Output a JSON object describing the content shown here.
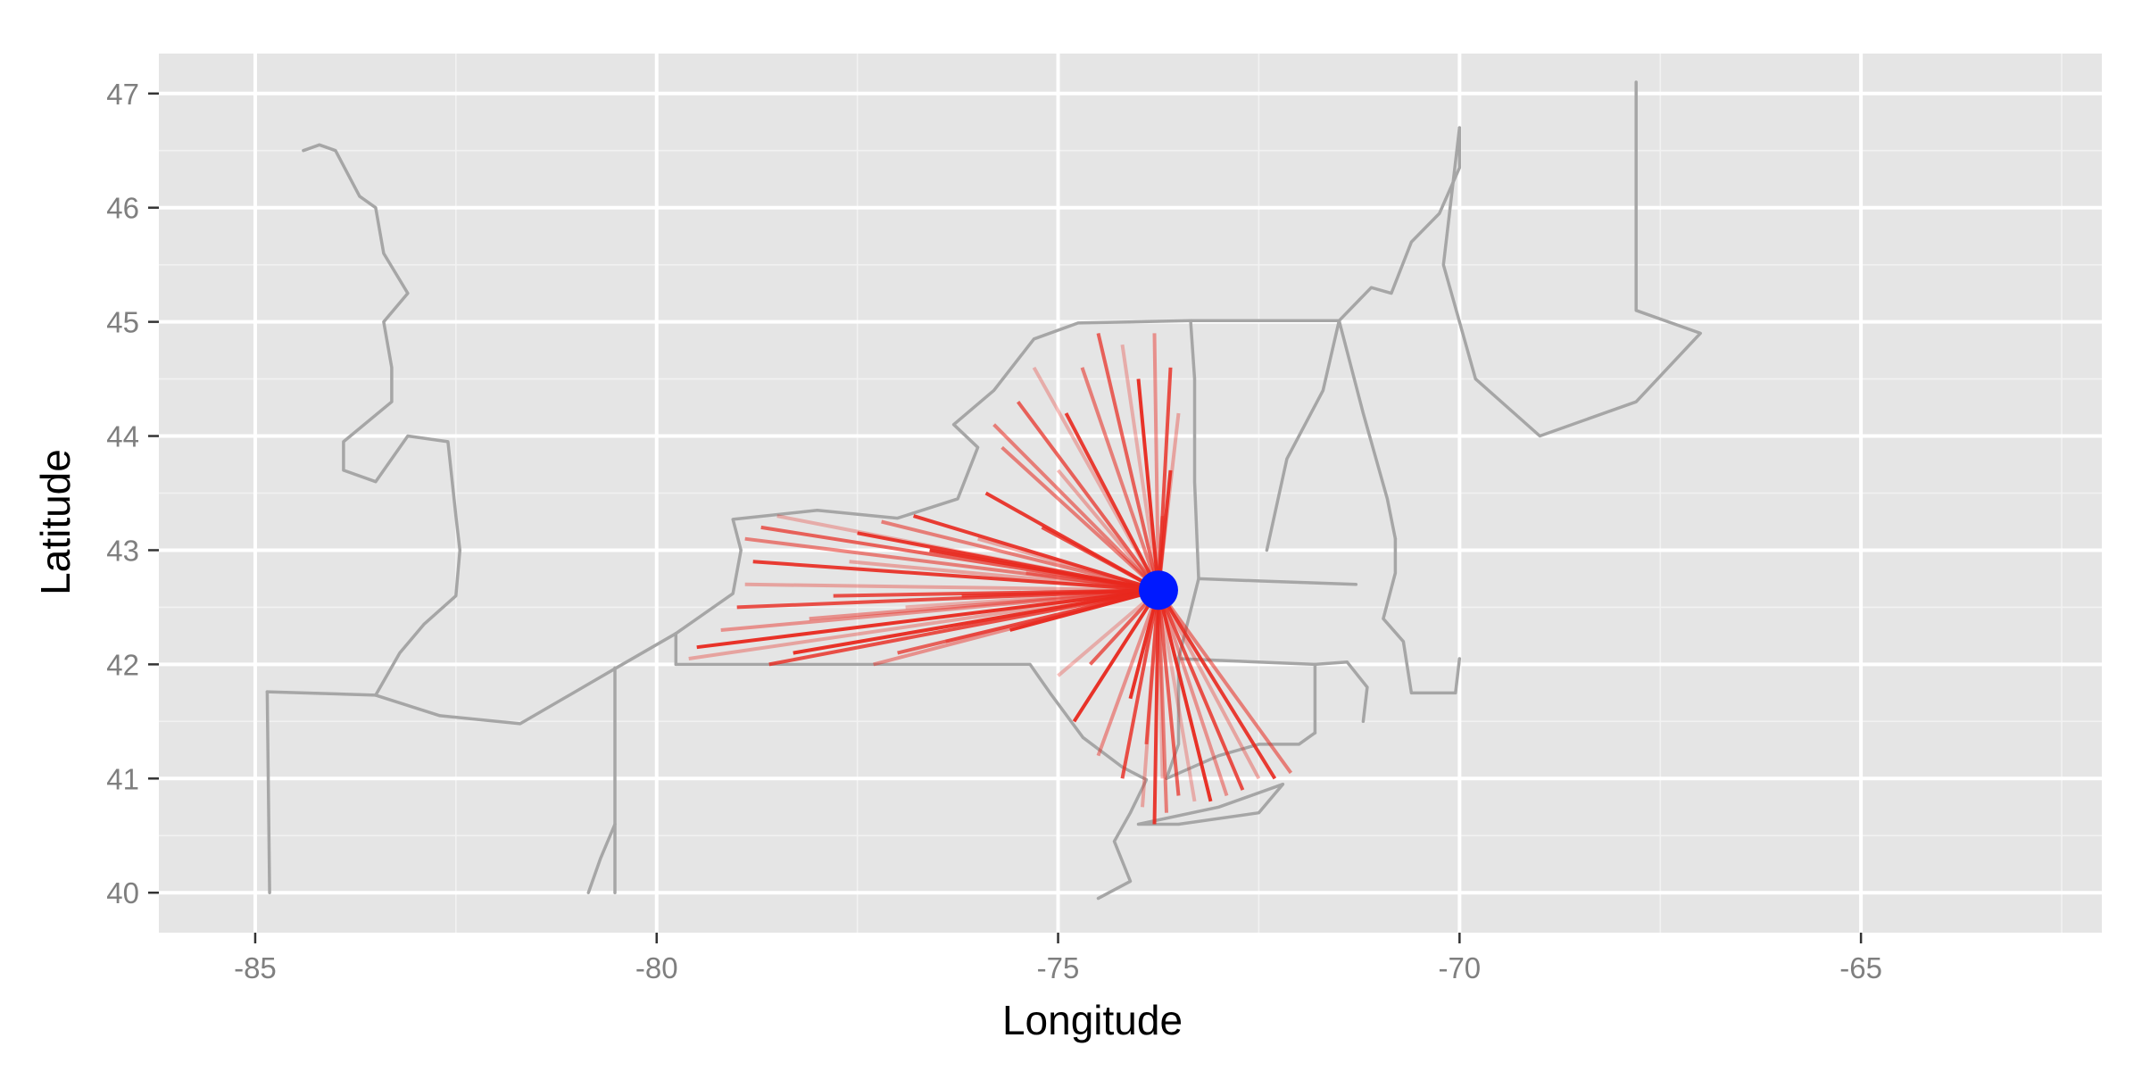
{
  "chart_data": {
    "type": "map",
    "xlabel": "Longitude",
    "ylabel": "Latitude",
    "xlim": [
      -86.2,
      -62.0
    ],
    "ylim": [
      39.65,
      47.35
    ],
    "x_ticks": [
      -85,
      -80,
      -75,
      -70,
      -65
    ],
    "x_tick_labels": [
      "-85",
      "-80",
      "-75",
      "-70",
      "-65"
    ],
    "y_ticks": [
      40,
      41,
      42,
      43,
      44,
      45,
      46,
      47
    ],
    "y_tick_labels": [
      "40",
      "41",
      "42",
      "43",
      "44",
      "45",
      "46",
      "47"
    ],
    "grid": true,
    "hub": {
      "lon": -73.75,
      "lat": 42.65,
      "color": "#0019ff"
    },
    "line_color": "#e8281e",
    "border_color": "#a6a6a6",
    "panel_background": "#e5e5e5",
    "borders": [
      [
        [
          -84.4,
          46.5
        ],
        [
          -84.2,
          46.55
        ],
        [
          -84.0,
          46.5
        ],
        [
          -83.7,
          46.1
        ],
        [
          -83.5,
          46.0
        ],
        [
          -83.4,
          45.6
        ],
        [
          -83.1,
          45.25
        ],
        [
          -83.4,
          45.0
        ],
        [
          -83.3,
          44.6
        ],
        [
          -83.3,
          44.3
        ],
        [
          -83.9,
          43.95
        ],
        [
          -83.9,
          43.7
        ],
        [
          -83.5,
          43.6
        ],
        [
          -83.1,
          44.0
        ],
        [
          -82.6,
          43.95
        ],
        [
          -82.5,
          43.3
        ],
        [
          -82.45,
          43.0
        ],
        [
          -82.5,
          42.6
        ],
        [
          -82.9,
          42.35
        ],
        [
          -83.2,
          42.1
        ],
        [
          -83.5,
          41.73
        ]
      ],
      [
        [
          -84.85,
          41.76
        ],
        [
          -83.5,
          41.73
        ],
        [
          -82.7,
          41.55
        ],
        [
          -81.7,
          41.48
        ],
        [
          -80.5,
          41.97
        ],
        [
          -79.76,
          42.27
        ],
        [
          -79.05,
          42.62
        ],
        [
          -78.95,
          43.0
        ],
        [
          -79.05,
          43.27
        ],
        [
          -78.0,
          43.35
        ],
        [
          -77.0,
          43.28
        ],
        [
          -76.25,
          43.45
        ],
        [
          -76.0,
          43.9
        ],
        [
          -76.3,
          44.1
        ],
        [
          -75.8,
          44.4
        ],
        [
          -75.3,
          44.85
        ],
        [
          -74.75,
          44.99
        ],
        [
          -73.35,
          45.01
        ],
        [
          -71.5,
          45.01
        ],
        [
          -71.1,
          45.3
        ],
        [
          -70.85,
          45.25
        ],
        [
          -70.6,
          45.7
        ],
        [
          -70.25,
          45.95
        ],
        [
          -70.0,
          46.35
        ],
        [
          -70.0,
          46.7
        ]
      ],
      [
        [
          -79.76,
          42.0
        ],
        [
          -79.76,
          42.27
        ]
      ],
      [
        [
          -79.76,
          42.0
        ],
        [
          -75.35,
          42.0
        ],
        [
          -75.1,
          41.75
        ],
        [
          -74.69,
          41.36
        ],
        [
          -74.2,
          41.1
        ],
        [
          -73.9,
          40.99
        ],
        [
          -74.1,
          40.7
        ],
        [
          -74.3,
          40.45
        ],
        [
          -74.1,
          40.1
        ],
        [
          -74.5,
          39.95
        ]
      ],
      [
        [
          -80.52,
          40.0
        ],
        [
          -80.52,
          41.97
        ]
      ],
      [
        [
          -80.52,
          40.6
        ],
        [
          -80.7,
          40.3
        ],
        [
          -80.85,
          40.0
        ]
      ],
      [
        [
          -84.82,
          40.0
        ],
        [
          -84.85,
          41.76
        ]
      ],
      [
        [
          -73.35,
          45.01
        ],
        [
          -73.3,
          44.5
        ],
        [
          -73.3,
          43.6
        ],
        [
          -73.25,
          42.75
        ],
        [
          -73.5,
          42.05
        ],
        [
          -73.5,
          41.3
        ],
        [
          -73.65,
          41.0
        ]
      ],
      [
        [
          -73.25,
          42.75
        ],
        [
          -72.47,
          42.73
        ],
        [
          -71.29,
          42.7
        ]
      ],
      [
        [
          -71.5,
          45.01
        ],
        [
          -71.2,
          44.2
        ],
        [
          -70.9,
          43.45
        ],
        [
          -70.8,
          43.1
        ]
      ],
      [
        [
          -72.4,
          43.0
        ],
        [
          -72.15,
          43.8
        ],
        [
          -71.7,
          44.4
        ],
        [
          -71.5,
          45.01
        ]
      ],
      [
        [
          -73.5,
          42.05
        ],
        [
          -71.8,
          42.0
        ],
        [
          -71.8,
          41.4
        ]
      ],
      [
        [
          -71.8,
          42.0
        ],
        [
          -71.4,
          42.02
        ],
        [
          -71.15,
          41.8
        ],
        [
          -71.2,
          41.5
        ]
      ],
      [
        [
          -73.65,
          41.0
        ],
        [
          -73.0,
          41.2
        ],
        [
          -72.5,
          41.3
        ],
        [
          -72.0,
          41.3
        ],
        [
          -71.8,
          41.4
        ]
      ],
      [
        [
          -70.8,
          43.1
        ],
        [
          -70.8,
          42.8
        ],
        [
          -70.95,
          42.4
        ],
        [
          -70.7,
          42.2
        ],
        [
          -70.6,
          41.75
        ],
        [
          -70.05,
          41.75
        ],
        [
          -70.0,
          42.05
        ]
      ],
      [
        [
          -74.0,
          40.6
        ],
        [
          -73.0,
          40.75
        ],
        [
          -72.2,
          40.95
        ],
        [
          -72.5,
          40.7
        ],
        [
          -73.5,
          40.6
        ],
        [
          -74.0,
          40.6
        ]
      ],
      [
        [
          -70.0,
          46.7
        ],
        [
          -70.2,
          45.5
        ],
        [
          -69.8,
          44.5
        ],
        [
          -69.0,
          44.0
        ],
        [
          -67.8,
          44.3
        ],
        [
          -67.0,
          44.9
        ],
        [
          -67.8,
          45.1
        ],
        [
          -67.8,
          45.7
        ],
        [
          -67.8,
          47.1
        ]
      ]
    ],
    "spokes": [
      [
        -79.5,
        42.15
      ],
      [
        -79.2,
        42.3
      ],
      [
        -79.0,
        42.5
      ],
      [
        -78.9,
        42.7
      ],
      [
        -78.8,
        42.9
      ],
      [
        -78.9,
        43.1
      ],
      [
        -78.7,
        43.2
      ],
      [
        -78.5,
        43.3
      ],
      [
        -78.3,
        42.1
      ],
      [
        -78.1,
        42.4
      ],
      [
        -77.8,
        42.6
      ],
      [
        -77.6,
        42.9
      ],
      [
        -77.5,
        43.15
      ],
      [
        -77.2,
        43.25
      ],
      [
        -77.0,
        42.1
      ],
      [
        -76.9,
        42.5
      ],
      [
        -76.6,
        43.0
      ],
      [
        -76.4,
        42.2
      ],
      [
        -76.2,
        42.6
      ],
      [
        -76.0,
        43.1
      ],
      [
        -75.9,
        43.5
      ],
      [
        -75.7,
        43.9
      ],
      [
        -75.5,
        44.3
      ],
      [
        -75.3,
        44.6
      ],
      [
        -75.6,
        42.3
      ],
      [
        -75.4,
        42.8
      ],
      [
        -75.2,
        43.2
      ],
      [
        -75.0,
        43.7
      ],
      [
        -74.9,
        44.2
      ],
      [
        -74.7,
        44.6
      ],
      [
        -74.5,
        44.9
      ],
      [
        -74.2,
        44.8
      ],
      [
        -74.0,
        44.5
      ],
      [
        -73.8,
        44.9
      ],
      [
        -73.6,
        44.6
      ],
      [
        -73.5,
        44.2
      ],
      [
        -73.6,
        43.7
      ],
      [
        -73.7,
        43.3
      ],
      [
        -74.6,
        42.0
      ],
      [
        -75.0,
        41.9
      ],
      [
        -74.8,
        41.5
      ],
      [
        -74.5,
        41.2
      ],
      [
        -74.2,
        41.0
      ],
      [
        -73.95,
        40.75
      ],
      [
        -73.8,
        40.6
      ],
      [
        -73.65,
        40.7
      ],
      [
        -73.5,
        40.85
      ],
      [
        -73.3,
        40.8
      ],
      [
        -73.1,
        40.8
      ],
      [
        -72.9,
        40.85
      ],
      [
        -72.7,
        40.9
      ],
      [
        -72.5,
        41.0
      ],
      [
        -72.3,
        41.0
      ],
      [
        -72.1,
        41.05
      ],
      [
        -73.9,
        41.3
      ],
      [
        -73.7,
        41.0
      ],
      [
        -74.1,
        41.7
      ],
      [
        -77.3,
        42.0
      ],
      [
        -78.6,
        42.0
      ],
      [
        -79.6,
        42.05
      ],
      [
        -76.8,
        43.3
      ],
      [
        -75.8,
        44.1
      ]
    ]
  }
}
